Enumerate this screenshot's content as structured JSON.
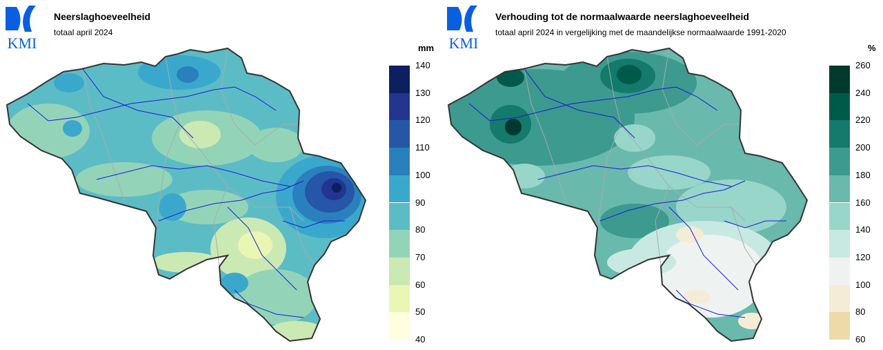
{
  "logo_text": "KMI",
  "colors": {
    "logo": "#0a5fe0",
    "border": "#333333",
    "river": "#1a1adc",
    "province": "#aaaaaa"
  },
  "left": {
    "title": "Neerslaghoeveelheid",
    "subtitle": "totaal april 2024",
    "unit": "mm",
    "legend_ticks": [
      "140",
      "130",
      "120",
      "110",
      "100",
      "90",
      "80",
      "70",
      "60",
      "50",
      "40"
    ],
    "legend_colors": [
      "#0c1f5e",
      "#22358f",
      "#2556a8",
      "#2a80bc",
      "#3aa8cc",
      "#5cbcc6",
      "#93d4b8",
      "#cbe9b3",
      "#eaf6b4",
      "#ffffdd"
    ]
  },
  "right": {
    "title": "Verhouding tot de normaalwaarde neerslaghoeveelheid",
    "subtitle": "totaal april 2024 in vergelijking met de maandelijkse normaalwaarde 1991-2020",
    "unit": "%",
    "legend_ticks": [
      "260",
      "240",
      "220",
      "200",
      "180",
      "160",
      "140",
      "120",
      "100",
      "80",
      "60"
    ],
    "legend_colors": [
      "#003a2e",
      "#005a4a",
      "#137a6c",
      "#3c9a8e",
      "#6ab9ad",
      "#98d6c9",
      "#c8e9e2",
      "#eef3f1",
      "#f5ecd6",
      "#eedaa8"
    ]
  }
}
